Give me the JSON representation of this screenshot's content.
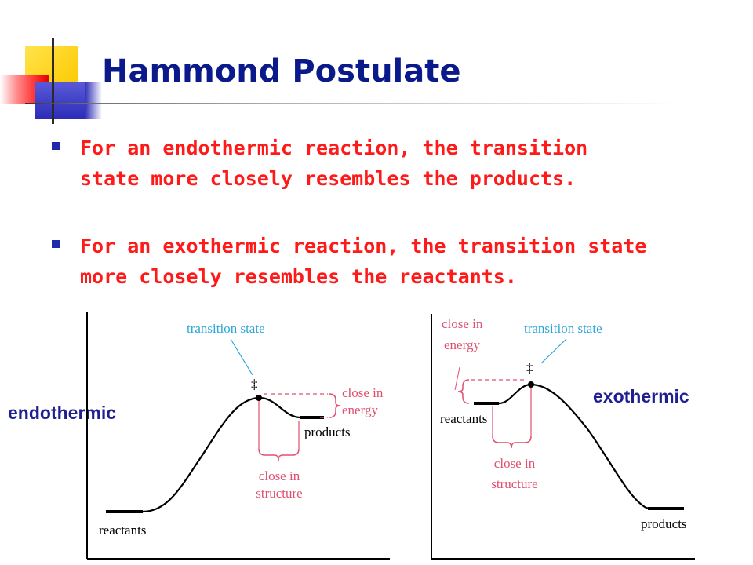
{
  "slide": {
    "title": "Hammond Postulate",
    "bullets": [
      {
        "text": "For an endothermic reaction, the transition\nstate more closely resembles the products."
      },
      {
        "text": "For an exothermic reaction, the transition state\nmore closely resembles the reactants."
      }
    ]
  },
  "colors": {
    "title": "#0a1a8a",
    "bullet_text": "#ff1a1a",
    "bullet_mark": "#1e2aa8",
    "side_label": "#1f1f8f",
    "annotation_blue": "#2aa6d8",
    "annotation_pink": "#e0506e",
    "curve": "#000000"
  },
  "diagrams": {
    "endothermic": {
      "side_label": "endothermic",
      "transition_state_label": "transition state",
      "ts_symbol": "‡",
      "energy_note": [
        "close in",
        "energy"
      ],
      "structure_note": [
        "close in",
        "structure"
      ],
      "reactants_label": "reactants",
      "products_label": "products"
    },
    "exothermic": {
      "side_label": "exothermic",
      "transition_state_label": "transition state",
      "ts_symbol": "‡",
      "energy_note": [
        "close in",
        "energy"
      ],
      "structure_note": [
        "close in",
        "structure"
      ],
      "reactants_label": "reactants",
      "products_label": "products"
    }
  }
}
